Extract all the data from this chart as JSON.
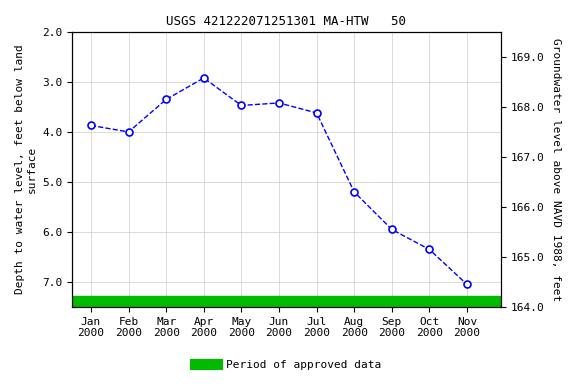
{
  "title": "USGS 421222071251301 MA-HTW   50",
  "months": [
    "Jan\n2000",
    "Feb\n2000",
    "Mar\n2000",
    "Apr\n2000",
    "May\n2000",
    "Jun\n2000",
    "Jul\n2000",
    "Aug\n2000",
    "Sep\n2000",
    "Oct\n2000",
    "Nov\n2000"
  ],
  "x_numeric": [
    0,
    1,
    2,
    3,
    4,
    5,
    6,
    7,
    8,
    9,
    10
  ],
  "x_data": [
    0,
    1,
    2,
    3,
    4,
    5,
    6,
    7,
    8,
    9,
    10
  ],
  "y_depth": [
    3.87,
    4.0,
    3.35,
    2.92,
    3.47,
    3.42,
    3.62,
    5.2,
    5.95,
    6.35,
    7.05
  ],
  "ylim_left_top": 2.0,
  "ylim_left_bottom": 7.5,
  "ylim_right_top": 169.5,
  "ylim_right_bottom": 164.0,
  "ylabel_left": "Depth to water level, feet below land\nsurface",
  "ylabel_right": "Groundwater level above NAVD 1988, feet",
  "line_color": "#0000FF",
  "marker_face": "#FFFFFF",
  "marker_size": 5,
  "grid_color": "#CCCCCC",
  "bg_color": "#FFFFFF",
  "green_bar_color": "#00BB00",
  "legend_label": "Period of approved data",
  "yticks_left": [
    2.0,
    3.0,
    4.0,
    5.0,
    6.0,
    7.0
  ],
  "yticks_right": [
    164.0,
    165.0,
    166.0,
    167.0,
    168.0,
    169.0
  ],
  "title_fontsize": 9,
  "axis_label_fontsize": 8,
  "tick_fontsize": 8,
  "xlim_left": -0.5,
  "xlim_right": 10.9
}
